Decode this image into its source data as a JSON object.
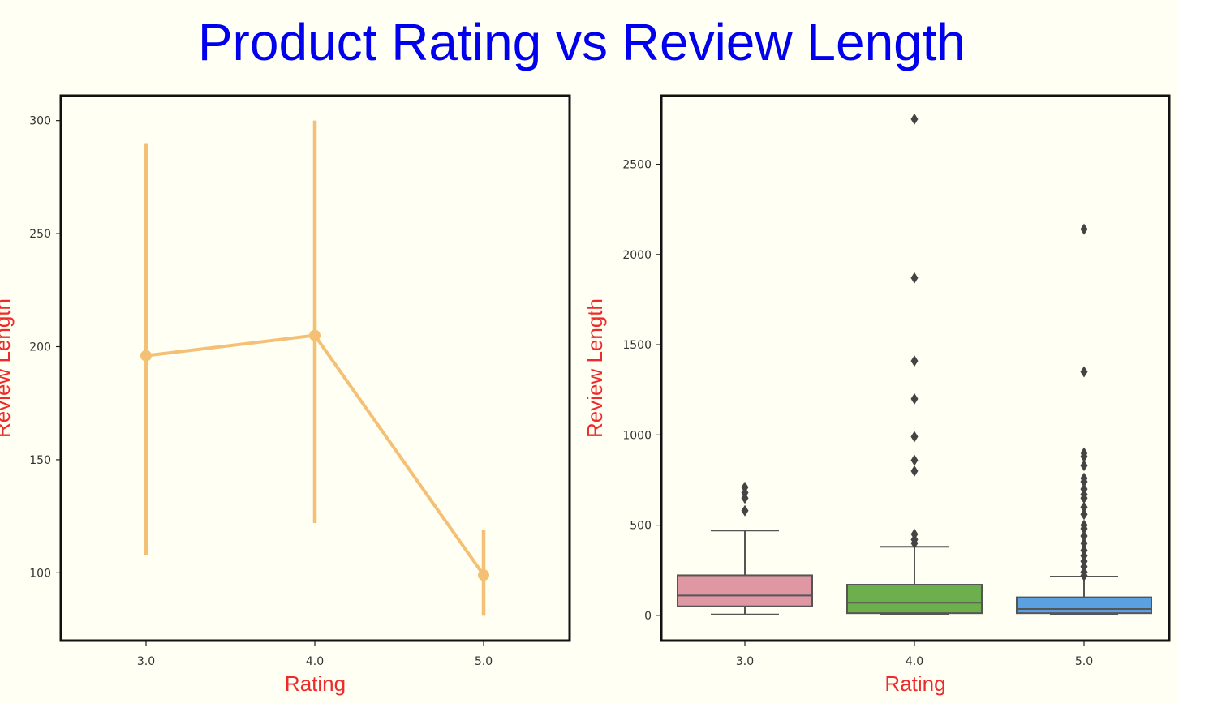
{
  "title": "Product Rating vs Review Length",
  "colors": {
    "background": "#fffff3",
    "title": "#0000ee",
    "axis_label": "#ee2a2a",
    "point_line": "#f4c076",
    "box_3": "#de97a3",
    "box_4": "#6daf4c",
    "box_5": "#5ba0e0",
    "box_edge": "#555555",
    "flier": "#444444"
  },
  "chart_data": [
    {
      "type": "line",
      "subtype": "pointplot-with-error-bars",
      "categories": [
        "3.0",
        "4.0",
        "5.0"
      ],
      "values": [
        196,
        205,
        99
      ],
      "error_low": [
        108,
        122,
        81
      ],
      "error_high": [
        290,
        300,
        119
      ],
      "xlabel": "Rating",
      "ylabel": "Review Length",
      "ylim": [
        70,
        311
      ],
      "yticks": [
        100,
        150,
        200,
        250,
        300
      ],
      "grid": false
    },
    {
      "type": "box",
      "categories": [
        "3.0",
        "4.0",
        "5.0"
      ],
      "boxes": [
        {
          "whisker_low": 5,
          "q1": 50,
          "median": 110,
          "q3": 222,
          "whisker_high": 470,
          "fliers": [
            580,
            650,
            680,
            710
          ]
        },
        {
          "whisker_low": 5,
          "q1": 12,
          "median": 70,
          "q3": 170,
          "whisker_high": 380,
          "fliers": [
            400,
            420,
            450,
            800,
            860,
            990,
            1200,
            1410,
            1870,
            2750
          ]
        },
        {
          "whisker_low": 5,
          "q1": 12,
          "median": 35,
          "q3": 100,
          "whisker_high": 215,
          "fliers": [
            220,
            240,
            270,
            300,
            330,
            360,
            400,
            440,
            480,
            500,
            560,
            600,
            650,
            670,
            700,
            740,
            760,
            830,
            880,
            900,
            1350,
            2140
          ]
        }
      ],
      "xlabel": "Rating",
      "ylabel": "Review Length",
      "ylim": [
        -140,
        2880
      ],
      "yticks": [
        0,
        500,
        1000,
        1500,
        2000,
        2500
      ],
      "grid": false
    }
  ]
}
